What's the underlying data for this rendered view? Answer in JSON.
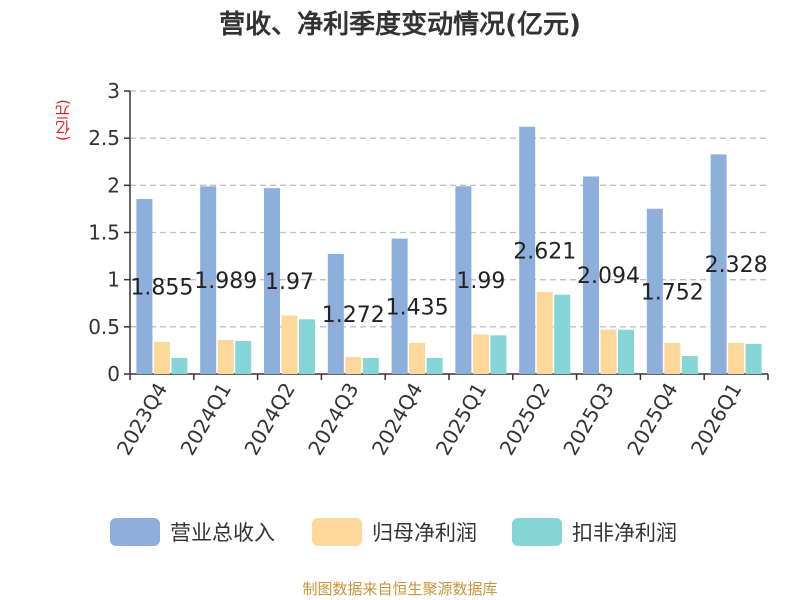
{
  "chart_data": {
    "type": "bar",
    "title": "营收、净利季度变动情况(亿元)",
    "ylabel": "(亿元)",
    "xlabel": "",
    "ylim": [
      0,
      3
    ],
    "yticks": [
      "0",
      "0.5",
      "1",
      "1.5",
      "2",
      "2.5",
      "3"
    ],
    "grid": true,
    "legend_position": "bottom",
    "categories": [
      "2023Q4",
      "2024Q1",
      "2024Q2",
      "2024Q3",
      "2024Q4",
      "2025Q1",
      "2025Q2",
      "2025Q3",
      "2025Q4",
      "2026Q1"
    ],
    "series": [
      {
        "name": "营业总收入",
        "color": "#8eaedb",
        "values": [
          1.855,
          1.989,
          1.97,
          1.272,
          1.435,
          1.99,
          2.621,
          2.094,
          1.752,
          2.328
        ],
        "data_labels": [
          "1.855",
          "1.989",
          "1.97",
          "1.272",
          "1.435",
          "1.99",
          "2.621",
          "2.094",
          "1.752",
          "2.328"
        ]
      },
      {
        "name": "归母净利润",
        "color": "#fdd89a",
        "values": [
          0.34,
          0.36,
          0.62,
          0.18,
          0.33,
          0.42,
          0.87,
          0.47,
          0.33,
          0.33
        ]
      },
      {
        "name": "扣非净利润",
        "color": "#86d6d8",
        "values": [
          0.17,
          0.35,
          0.58,
          0.17,
          0.17,
          0.41,
          0.84,
          0.47,
          0.19,
          0.32
        ]
      }
    ]
  },
  "source": "制图数据来自恒生聚源数据库"
}
